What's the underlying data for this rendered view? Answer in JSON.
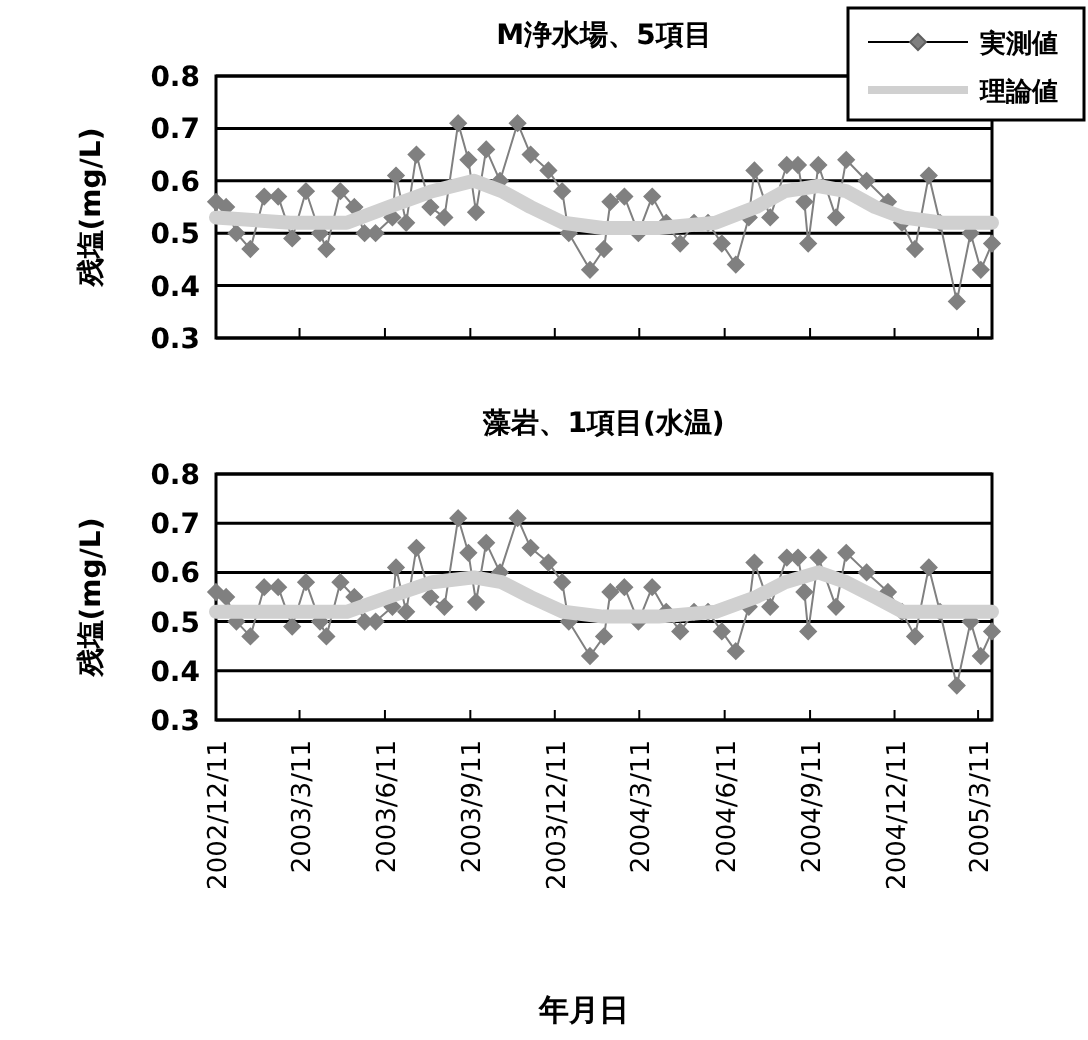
{
  "chart_data": [
    {
      "type": "line",
      "title": "M浄水場、5項目",
      "ylabel": "残塩(mg/L)",
      "legend": "top right",
      "grid": "y",
      "tick_labels": "y",
      "xlim": [
        "2002-12-11",
        "2005-03-26"
      ],
      "xticks": [
        {
          "value": "2002-12-11",
          "label": null
        },
        {
          "value": "2003-03-11",
          "label": null
        },
        {
          "value": "2003-06-11",
          "label": null
        },
        {
          "value": "2003-09-11",
          "label": null
        },
        {
          "value": "2003-12-11",
          "label": null
        },
        {
          "value": "2004-03-11",
          "label": null
        },
        {
          "value": "2004-06-11",
          "label": null
        },
        {
          "value": "2004-09-11",
          "label": null
        },
        {
          "value": "2004-12-11",
          "label": null
        },
        {
          "value": "2005-03-11",
          "label": null
        }
      ],
      "ylim": [
        0.3,
        0.8
      ],
      "yticks": [
        0.3,
        0.4,
        0.5,
        0.6,
        0.7,
        0.8
      ],
      "series": [
        {
          "name": "実測値",
          "color": "#808080",
          "marker": "diamond",
          "x": [
            "2002-12-11",
            "2002-12-22",
            "2003-01-02",
            "2003-01-17",
            "2003-02-01",
            "2003-02-16",
            "2003-03-03",
            "2003-03-18",
            "2003-04-02",
            "2003-04-09",
            "2003-04-24",
            "2003-05-09",
            "2003-05-20",
            "2003-06-01",
            "2003-06-19",
            "2003-06-23",
            "2003-07-04",
            "2003-07-15",
            "2003-07-30",
            "2003-08-14",
            "2003-08-29",
            "2003-09-09",
            "2003-09-17",
            "2003-09-28",
            "2003-10-13",
            "2003-11-01",
            "2003-11-15",
            "2003-12-04",
            "2003-12-19",
            "2003-12-26",
            "2004-01-18",
            "2004-02-02",
            "2004-02-09",
            "2004-02-24",
            "2004-03-10",
            "2004-03-25",
            "2004-04-09",
            "2004-04-24",
            "2004-05-09",
            "2004-05-24",
            "2004-06-08",
            "2004-06-23",
            "2004-07-07",
            "2004-07-13",
            "2004-07-30",
            "2004-08-17",
            "2004-08-29",
            "2004-09-05",
            "2004-09-09",
            "2004-09-20",
            "2004-10-09",
            "2004-10-20",
            "2004-11-11",
            "2004-12-04",
            "2004-12-19",
            "2005-01-02",
            "2005-01-17",
            "2005-01-29",
            "2005-02-16",
            "2005-03-03",
            "2005-03-14",
            "2005-03-26"
          ],
          "values": [
            0.56,
            0.55,
            0.5,
            0.47,
            0.57,
            0.57,
            0.49,
            0.58,
            0.5,
            0.47,
            0.58,
            0.55,
            0.5,
            0.5,
            0.53,
            0.61,
            0.52,
            0.65,
            0.55,
            0.53,
            0.71,
            0.64,
            0.54,
            0.66,
            0.6,
            0.71,
            0.65,
            0.62,
            0.58,
            0.5,
            0.43,
            0.47,
            0.56,
            0.57,
            0.5,
            0.57,
            0.52,
            0.48,
            0.52,
            0.52,
            0.48,
            0.44,
            0.53,
            0.62,
            0.53,
            0.63,
            0.63,
            0.56,
            0.48,
            0.63,
            0.53,
            0.64,
            0.6,
            0.56,
            0.52,
            0.47,
            0.61,
            0.52,
            0.37,
            0.5,
            0.43,
            0.48
          ]
        },
        {
          "name": "理論値",
          "color": "#d0d0d0",
          "marker": "none",
          "x": [
            "2002-12-11",
            "2003-03-01",
            "2003-05-01",
            "2003-06-15",
            "2003-08-01",
            "2003-09-15",
            "2003-10-15",
            "2003-11-15",
            "2003-12-20",
            "2004-02-01",
            "2004-04-01",
            "2004-06-01",
            "2004-07-15",
            "2004-08-15",
            "2004-09-20",
            "2004-10-20",
            "2004-11-20",
            "2004-12-20",
            "2005-02-01",
            "2005-03-26"
          ],
          "values": [
            0.53,
            0.52,
            0.52,
            0.55,
            0.58,
            0.6,
            0.58,
            0.55,
            0.52,
            0.51,
            0.51,
            0.52,
            0.55,
            0.58,
            0.59,
            0.58,
            0.55,
            0.53,
            0.52,
            0.52
          ]
        }
      ]
    },
    {
      "type": "line",
      "title": "藻岩、1項目(水温)",
      "ylabel": "残塩(mg/L)",
      "xlabel": "年月日",
      "legend": false,
      "grid": "y",
      "xlim": [
        "2002-12-11",
        "2005-03-26"
      ],
      "xticks": [
        {
          "value": "2002-12-11",
          "label": "2002/12/11"
        },
        {
          "value": "2003-03-11",
          "label": "2003/3/11"
        },
        {
          "value": "2003-06-11",
          "label": "2003/6/11"
        },
        {
          "value": "2003-09-11",
          "label": "2003/9/11"
        },
        {
          "value": "2003-12-11",
          "label": "2003/12/11"
        },
        {
          "value": "2004-03-11",
          "label": "2004/3/11"
        },
        {
          "value": "2004-06-11",
          "label": "2004/6/11"
        },
        {
          "value": "2004-09-11",
          "label": "2004/9/11"
        },
        {
          "value": "2004-12-11",
          "label": "2004/12/11"
        },
        {
          "value": "2005-03-11",
          "label": "2005/3/11"
        }
      ],
      "ylim": [
        0.3,
        0.8
      ],
      "yticks": [
        0.3,
        0.4,
        0.5,
        0.6,
        0.7,
        0.8
      ],
      "series": [
        {
          "color": "#808080",
          "marker": "diamond",
          "x": [
            "2002-12-11",
            "2002-12-22",
            "2003-01-02",
            "2003-01-17",
            "2003-02-01",
            "2003-02-16",
            "2003-03-03",
            "2003-03-18",
            "2003-04-02",
            "2003-04-09",
            "2003-04-24",
            "2003-05-09",
            "2003-05-20",
            "2003-06-01",
            "2003-06-19",
            "2003-06-23",
            "2003-07-04",
            "2003-07-15",
            "2003-07-30",
            "2003-08-14",
            "2003-08-29",
            "2003-09-09",
            "2003-09-17",
            "2003-09-28",
            "2003-10-13",
            "2003-11-01",
            "2003-11-15",
            "2003-12-04",
            "2003-12-19",
            "2003-12-26",
            "2004-01-18",
            "2004-02-02",
            "2004-02-09",
            "2004-02-24",
            "2004-03-10",
            "2004-03-25",
            "2004-04-09",
            "2004-04-24",
            "2004-05-09",
            "2004-05-24",
            "2004-06-08",
            "2004-06-23",
            "2004-07-07",
            "2004-07-13",
            "2004-07-30",
            "2004-08-17",
            "2004-08-29",
            "2004-09-05",
            "2004-09-09",
            "2004-09-20",
            "2004-10-09",
            "2004-10-20",
            "2004-11-11",
            "2004-12-04",
            "2004-12-19",
            "2005-01-02",
            "2005-01-17",
            "2005-01-29",
            "2005-02-16",
            "2005-03-03",
            "2005-03-14",
            "2005-03-26"
          ],
          "values": [
            0.56,
            0.55,
            0.5,
            0.47,
            0.57,
            0.57,
            0.49,
            0.58,
            0.5,
            0.47,
            0.58,
            0.55,
            0.5,
            0.5,
            0.53,
            0.61,
            0.52,
            0.65,
            0.55,
            0.53,
            0.71,
            0.64,
            0.54,
            0.66,
            0.6,
            0.71,
            0.65,
            0.62,
            0.58,
            0.5,
            0.43,
            0.47,
            0.56,
            0.57,
            0.5,
            0.57,
            0.52,
            0.48,
            0.52,
            0.52,
            0.48,
            0.44,
            0.53,
            0.62,
            0.53,
            0.63,
            0.63,
            0.56,
            0.48,
            0.63,
            0.53,
            0.64,
            0.6,
            0.56,
            0.52,
            0.47,
            0.61,
            0.52,
            0.37,
            0.5,
            0.43,
            0.48
          ]
        },
        {
          "color": "#d0d0d0",
          "marker": "none",
          "x": [
            "2002-12-11",
            "2003-03-01",
            "2003-05-01",
            "2003-06-15",
            "2003-08-01",
            "2003-09-15",
            "2003-10-15",
            "2003-11-15",
            "2003-12-20",
            "2004-02-01",
            "2004-04-01",
            "2004-06-01",
            "2004-07-15",
            "2004-08-15",
            "2004-09-20",
            "2004-10-20",
            "2004-11-20",
            "2004-12-20",
            "2005-02-01",
            "2005-03-26"
          ],
          "values": [
            0.52,
            0.52,
            0.52,
            0.55,
            0.58,
            0.59,
            0.58,
            0.55,
            0.52,
            0.51,
            0.51,
            0.52,
            0.55,
            0.58,
            0.6,
            0.58,
            0.55,
            0.52,
            0.52,
            0.52
          ]
        }
      ]
    }
  ]
}
